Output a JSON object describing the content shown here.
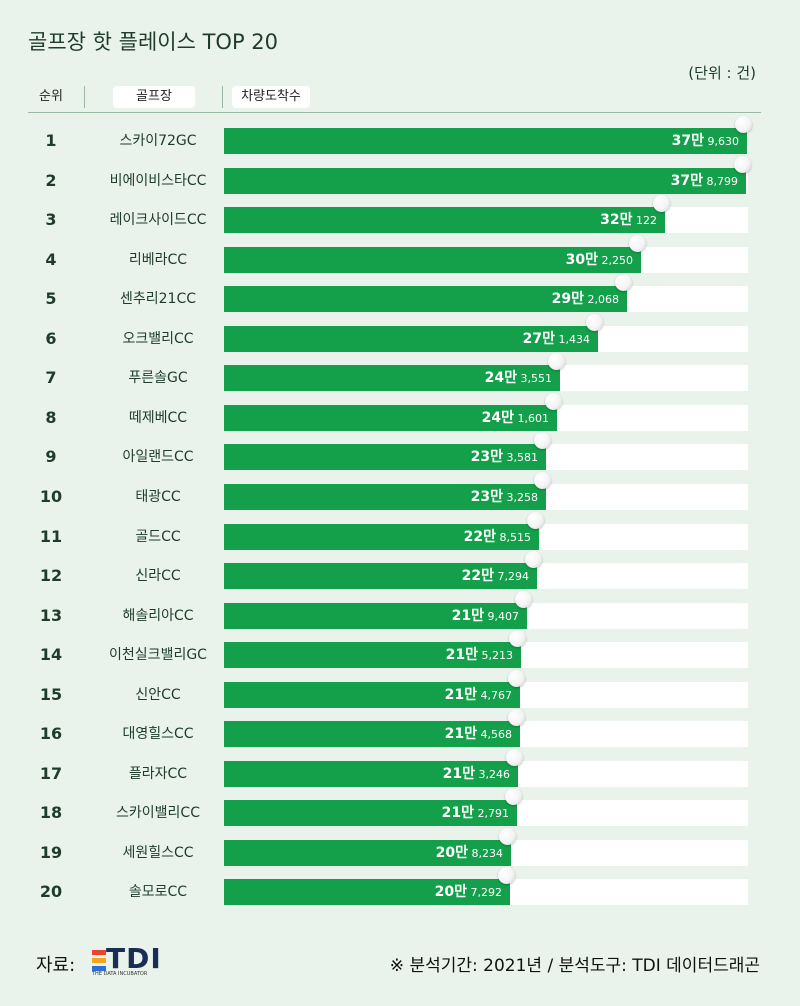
{
  "title": "골프장 핫 플레이스 TOP 20",
  "unit": "(단위 : 건)",
  "headers": {
    "rank": "순위",
    "golf": "골프장",
    "count": "차량도착수"
  },
  "chart_data": {
    "type": "bar",
    "title": "골프장 핫 플레이스 TOP 20",
    "xmax": 380000,
    "rows": [
      {
        "rank": "1",
        "name": "스카이72GC",
        "value": 379630,
        "big": "37만",
        "small": "9,630"
      },
      {
        "rank": "2",
        "name": "비에이비스타CC",
        "value": 378799,
        "big": "37만",
        "small": "8,799"
      },
      {
        "rank": "3",
        "name": "레이크사이드CC",
        "value": 320122,
        "big": "32만",
        "small": "122"
      },
      {
        "rank": "4",
        "name": "리베라CC",
        "value": 302250,
        "big": "30만",
        "small": "2,250"
      },
      {
        "rank": "5",
        "name": "센추리21CC",
        "value": 292068,
        "big": "29만",
        "small": "2,068"
      },
      {
        "rank": "6",
        "name": "오크밸리CC",
        "value": 271434,
        "big": "27만",
        "small": "1,434"
      },
      {
        "rank": "7",
        "name": "푸른솔GC",
        "value": 243551,
        "big": "24만",
        "small": "3,551"
      },
      {
        "rank": "8",
        "name": "떼제베CC",
        "value": 241601,
        "big": "24만",
        "small": "1,601"
      },
      {
        "rank": "9",
        "name": "아일랜드CC",
        "value": 233581,
        "big": "23만",
        "small": "3,581"
      },
      {
        "rank": "10",
        "name": "태광CC",
        "value": 233258,
        "big": "23만",
        "small": "3,258"
      },
      {
        "rank": "11",
        "name": "골드CC",
        "value": 228515,
        "big": "22만",
        "small": "8,515"
      },
      {
        "rank": "12",
        "name": "신라CC",
        "value": 227294,
        "big": "22만",
        "small": "7,294"
      },
      {
        "rank": "13",
        "name": "해솔리아CC",
        "value": 219407,
        "big": "21만",
        "small": "9,407"
      },
      {
        "rank": "14",
        "name": "이천실크밸리GC",
        "value": 215213,
        "big": "21만",
        "small": "5,213"
      },
      {
        "rank": "15",
        "name": "신안CC",
        "value": 214767,
        "big": "21만",
        "small": "4,767"
      },
      {
        "rank": "16",
        "name": "대영힐스CC",
        "value": 214568,
        "big": "21만",
        "small": "4,568"
      },
      {
        "rank": "17",
        "name": "플라자CC",
        "value": 213246,
        "big": "21만",
        "small": "3,246"
      },
      {
        "rank": "18",
        "name": "스카이밸리CC",
        "value": 212791,
        "big": "21만",
        "small": "2,791"
      },
      {
        "rank": "19",
        "name": "세원힐스CC",
        "value": 208234,
        "big": "20만",
        "small": "8,234"
      },
      {
        "rank": "20",
        "name": "솔모로CC",
        "value": 207292,
        "big": "20만",
        "small": "7,292"
      }
    ]
  },
  "footer": {
    "source_label": "자료:",
    "logo_text": "TDI",
    "logo_sub": "THE DATA INCUBATOR",
    "logo_colors": [
      "#e8452c",
      "#f3a51e",
      "#2a6fd6"
    ],
    "note": "※ 분석기간: 2021년 / 분석도구: TDI 데이터드래곤"
  },
  "colors": {
    "bar": "#14a04a",
    "background": "#e9f3ec",
    "track": "#ffffff"
  }
}
